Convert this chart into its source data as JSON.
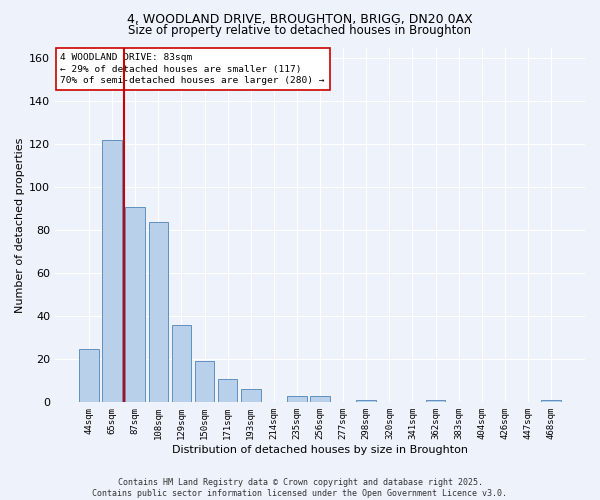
{
  "title1": "4, WOODLAND DRIVE, BROUGHTON, BRIGG, DN20 0AX",
  "title2": "Size of property relative to detached houses in Broughton",
  "xlabel": "Distribution of detached houses by size in Broughton",
  "ylabel": "Number of detached properties",
  "categories": [
    "44sqm",
    "65sqm",
    "87sqm",
    "108sqm",
    "129sqm",
    "150sqm",
    "171sqm",
    "193sqm",
    "214sqm",
    "235sqm",
    "256sqm",
    "277sqm",
    "298sqm",
    "320sqm",
    "341sqm",
    "362sqm",
    "383sqm",
    "404sqm",
    "426sqm",
    "447sqm",
    "468sqm"
  ],
  "values": [
    25,
    122,
    91,
    84,
    36,
    19,
    11,
    6,
    0,
    3,
    3,
    0,
    1,
    0,
    0,
    1,
    0,
    0,
    0,
    0,
    1
  ],
  "bar_color": "#b8d0ea",
  "bar_edge_color": "#6090c0",
  "red_line_x": 1.5,
  "ylim": [
    0,
    165
  ],
  "yticks": [
    0,
    20,
    40,
    60,
    80,
    100,
    120,
    140,
    160
  ],
  "annotation_title": "4 WOODLAND DRIVE: 83sqm",
  "annotation_line1": "← 29% of detached houses are smaller (117)",
  "annotation_line2": "70% of semi-detached houses are larger (280) →",
  "annotation_box_color": "#ffffff",
  "annotation_box_edge": "#cc0000",
  "footer1": "Contains HM Land Registry data © Crown copyright and database right 2025.",
  "footer2": "Contains public sector information licensed under the Open Government Licence v3.0.",
  "background_color": "#eef2fb",
  "grid_color": "#ffffff"
}
